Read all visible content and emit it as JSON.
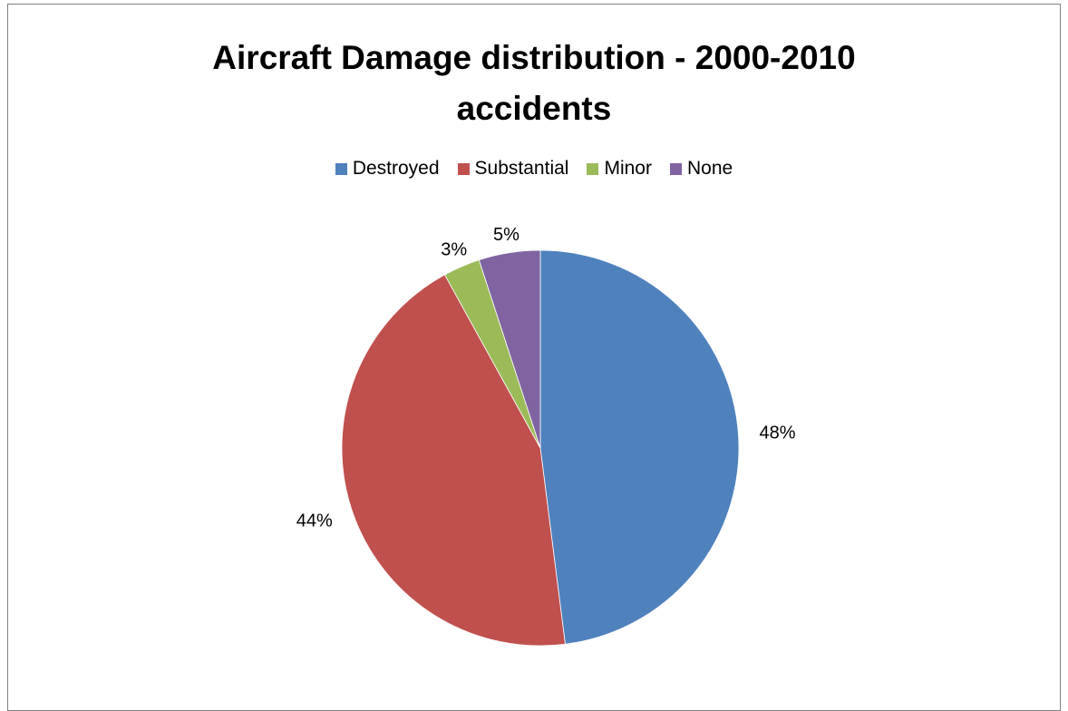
{
  "chart_data": {
    "type": "pie",
    "title_lines": [
      "Aircraft Damage distribution - 2000-2010",
      "accidents"
    ],
    "categories": [
      "Destroyed",
      "Substantial",
      "Minor",
      "None"
    ],
    "values": [
      48,
      44,
      3,
      5
    ],
    "data_labels": [
      "48%",
      "44%",
      "3%",
      "5%"
    ],
    "colors": [
      "#4f81bd",
      "#c0504d",
      "#9bbb59",
      "#8064a2"
    ],
    "legend_position": "top",
    "start_angle": "12 o'clock",
    "direction": "clockwise"
  }
}
